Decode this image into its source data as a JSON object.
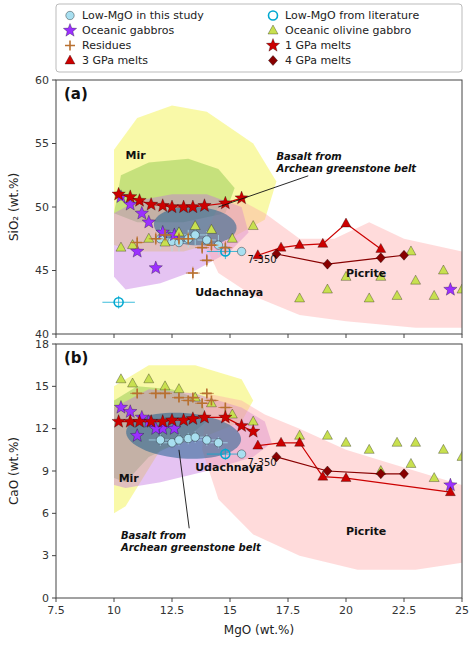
{
  "chart_data": [
    {
      "type": "scatter",
      "title": "(a)",
      "ylabel": "SiO₂ (wt.%)",
      "xlim": [
        7.5,
        25
      ],
      "ylim": [
        40,
        60
      ],
      "xticks": [
        7.5,
        10,
        12.5,
        15,
        17.5,
        20,
        22.5,
        25
      ],
      "yticks": [
        40,
        45,
        50,
        55,
        60
      ],
      "grid": false,
      "tick_labels": "y",
      "legend": "top",
      "regions": [
        {
          "type": "polygon",
          "color": "#f0f030",
          "x": [
            10.0,
            10.0,
            11.0,
            12.5,
            14.0,
            16.0,
            17.0,
            16.5,
            15.0,
            13.0,
            11.0,
            10.0
          ],
          "values": [
            47.0,
            54.5,
            57.0,
            58.0,
            57.5,
            55.0,
            52.0,
            49.0,
            47.5,
            46.5,
            46.5,
            47.0
          ]
        },
        {
          "type": "polygon",
          "color": "#80c040",
          "x": [
            10.0,
            10.3,
            11.5,
            13.2,
            14.5,
            15.2,
            14.8,
            13.0,
            11.0,
            10.0
          ],
          "values": [
            49.5,
            52.5,
            53.5,
            53.8,
            53.0,
            51.5,
            49.5,
            48.8,
            48.8,
            49.5
          ]
        },
        {
          "type": "polygon",
          "color": "#c070e0",
          "x": [
            10.0,
            10.0,
            11.0,
            12.5,
            14.0,
            15.5,
            15.8,
            15.0,
            13.5,
            12.0,
            10.5,
            10.0
          ],
          "values": [
            44.5,
            49.5,
            50.5,
            51.0,
            51.0,
            50.0,
            48.0,
            46.5,
            45.0,
            44.0,
            43.5,
            44.5
          ]
        },
        {
          "type": "polygon",
          "color": "#ffaaaa",
          "x": [
            14.5,
            15.5,
            16.5,
            18.0,
            19.5,
            21.0,
            22.5,
            25.0,
            25.0,
            23.0,
            20.0,
            18.0,
            16.0,
            14.5,
            13.8,
            14.5
          ],
          "values": [
            50.0,
            50.5,
            49.5,
            47.5,
            47.5,
            48.8,
            47.5,
            46.5,
            40.5,
            40.5,
            41.0,
            41.5,
            43.0,
            44.8,
            47.5,
            50.0
          ]
        },
        {
          "type": "ellipse",
          "color": "#206090",
          "cx": 13.5,
          "cy": 48.5,
          "rx": 1.8,
          "ry": 1.5,
          "angle": -15
        }
      ],
      "series": [
        {
          "name": "Low-MgO in this study",
          "color": "#a8dff0",
          "marker": "circle",
          "x": [
            12.0,
            12.5,
            12.8,
            13.2,
            13.5,
            14.0,
            14.5
          ],
          "values": [
            47.5,
            47.3,
            47.2,
            47.5,
            47.8,
            47.4,
            47.0
          ],
          "xerr": [
            0.5,
            0.4,
            0.4,
            0.4,
            0.5,
            0.4,
            0.4
          ],
          "yerr": [
            0.8,
            0.8,
            0.7,
            0.7,
            0.8,
            0.7,
            0.8
          ]
        },
        {
          "name": "Low-MgO from literature",
          "color": "#00a8d0",
          "marker": "circle-open",
          "x": [
            10.2,
            14.8
          ],
          "values": [
            42.5,
            46.5
          ],
          "xerr": [
            0.7,
            0.8
          ],
          "yerr": [
            0.5,
            0.6
          ]
        },
        {
          "name": "Oceanic gabbros",
          "color": "#9b30ff",
          "marker": "star",
          "x": [
            10.3,
            10.7,
            11.2,
            11.5,
            12.1,
            12.6,
            11.0,
            11.8,
            24.5
          ],
          "values": [
            50.8,
            50.2,
            49.5,
            48.8,
            48.0,
            47.8,
            46.5,
            45.2,
            43.5
          ]
        },
        {
          "name": "Oceanic olivine gabbro",
          "color": "#c8e050",
          "marker": "triangle",
          "x": [
            10.3,
            10.8,
            11.5,
            12.2,
            12.8,
            13.5,
            14.2,
            15.1,
            16.0,
            18.0,
            19.2,
            20.0,
            21.0,
            22.2,
            23.0,
            24.2,
            25.0,
            21.5,
            22.8,
            23.8
          ],
          "values": [
            46.8,
            47.0,
            47.5,
            47.2,
            48.0,
            48.5,
            48.2,
            47.5,
            48.5,
            42.8,
            43.5,
            44.5,
            42.8,
            43.0,
            44.2,
            45.0,
            43.5,
            44.5,
            46.5,
            43.0
          ]
        },
        {
          "name": "Residues",
          "color": "#b87030",
          "marker": "plus",
          "x": [
            11.0,
            11.8,
            12.2,
            12.8,
            13.2,
            13.8,
            14.2,
            14.8,
            13.4,
            14.0
          ],
          "values": [
            47.2,
            47.5,
            47.8,
            47.5,
            47.5,
            46.8,
            47.0,
            46.8,
            44.8,
            45.8
          ],
          "xerr": [
            0.3,
            0.3,
            0.3,
            0.3,
            0.3,
            0.3,
            0.3,
            0.3,
            0.3,
            0.3
          ],
          "yerr": [
            0.5,
            0.5,
            0.5,
            0.5,
            0.5,
            0.5,
            0.5,
            0.5,
            0.5,
            0.5
          ]
        },
        {
          "name": "1 GPa melts",
          "color": "#cc0000",
          "marker": "star",
          "line_style": "solid",
          "x": [
            10.2,
            10.7,
            11.1,
            11.6,
            12.1,
            12.5,
            13.0,
            13.4,
            13.9,
            14.8,
            15.5
          ],
          "values": [
            51.0,
            50.8,
            50.5,
            50.2,
            50.1,
            50.0,
            50.0,
            50.0,
            50.1,
            50.3,
            50.7
          ]
        },
        {
          "name": "3 GPa melts",
          "color": "#cc0000",
          "marker": "triangle",
          "line_style": "solid",
          "x": [
            16.2,
            17.2,
            18.0,
            19.0,
            20.0,
            21.5
          ],
          "values": [
            46.2,
            46.8,
            47.0,
            47.1,
            48.7,
            46.7
          ]
        },
        {
          "name": "4 GPa melts",
          "color": "#880000",
          "marker": "diamond",
          "line_style": "solid",
          "x": [
            17.0,
            19.2,
            21.5,
            22.5
          ],
          "values": [
            46.3,
            45.5,
            46.0,
            46.2
          ]
        }
      ],
      "annotations": [
        {
          "text": "7-350",
          "x": 15.5,
          "y": 46.5,
          "marker": "circle",
          "color": "#a8dff0"
        },
        {
          "text": "Mir",
          "x": 10.5,
          "y": 53.8
        },
        {
          "text": "Udachnaya",
          "x": 13.5,
          "y": 43.0
        },
        {
          "text": "Basalt from\nArchean greenstone belt",
          "x": 17.0,
          "y": 53.5,
          "target_x": 14.5,
          "target_y": 50.0
        },
        {
          "text": "Picrite",
          "x": 20.0,
          "y": 44.5
        }
      ]
    },
    {
      "type": "scatter",
      "title": "(b)",
      "xlabel": "MgO (wt.%)",
      "ylabel": "CaO (wt.%)",
      "xlim": [
        7.5,
        25
      ],
      "ylim": [
        0,
        18
      ],
      "xticks": [
        7.5,
        10,
        12.5,
        15,
        17.5,
        20,
        22.5,
        25
      ],
      "yticks": [
        0,
        3,
        6,
        9,
        12,
        15,
        18
      ],
      "grid": false,
      "regions": [
        {
          "type": "polygon",
          "color": "#f0f030",
          "x": [
            10.0,
            10.0,
            11.5,
            13.5,
            15.5,
            16.0,
            15.5,
            14.0,
            12.0,
            10.5,
            10.0
          ],
          "values": [
            6.0,
            15.0,
            16.5,
            16.5,
            15.5,
            14.0,
            12.5,
            11.5,
            10.5,
            6.5,
            6.0
          ]
        },
        {
          "type": "polygon",
          "color": "#80c040",
          "x": [
            10.0,
            10.0,
            11.0,
            12.5,
            13.8,
            14.0,
            13.0,
            11.5,
            10.5,
            10.0
          ],
          "values": [
            8.5,
            14.0,
            15.0,
            14.8,
            14.0,
            12.5,
            11.2,
            10.0,
            8.2,
            8.5
          ]
        },
        {
          "type": "polygon",
          "color": "#c070e0",
          "x": [
            10.0,
            10.0,
            11.5,
            13.5,
            15.5,
            16.5,
            16.8,
            16.0,
            14.0,
            12.0,
            10.5,
            10.0
          ],
          "values": [
            8.0,
            13.5,
            14.8,
            14.5,
            13.5,
            12.5,
            11.0,
            10.0,
            9.0,
            8.2,
            7.8,
            8.0
          ]
        },
        {
          "type": "polygon",
          "color": "#ffaaaa",
          "x": [
            14.0,
            15.5,
            16.5,
            18.0,
            20.0,
            22.0,
            24.0,
            25.0,
            25.0,
            23.0,
            20.5,
            18.0,
            16.0,
            14.5,
            13.8,
            14.0
          ],
          "values": [
            14.5,
            14.0,
            13.0,
            12.0,
            10.5,
            9.5,
            8.5,
            8.0,
            2.5,
            2.0,
            2.0,
            3.0,
            4.5,
            7.0,
            10.5,
            14.5
          ]
        },
        {
          "type": "ellipse",
          "color": "#206090",
          "cx": 13.0,
          "cy": 11.5,
          "rx": 2.5,
          "ry": 1.6,
          "angle": -10
        }
      ],
      "series": [
        {
          "color": "#a8dff0",
          "marker": "circle",
          "x": [
            12.0,
            12.5,
            12.8,
            13.2,
            13.5,
            14.0,
            14.5
          ],
          "values": [
            11.2,
            11.0,
            11.2,
            11.3,
            11.4,
            11.2,
            11.0
          ],
          "xerr": [
            0.5,
            0.4,
            0.4,
            0.4,
            0.5,
            0.4,
            0.4
          ],
          "yerr": [
            0.4,
            0.3,
            0.4,
            0.4,
            0.4,
            0.4,
            0.4
          ]
        },
        {
          "color": "#00a8d0",
          "marker": "circle-open",
          "x": [
            14.8
          ],
          "values": [
            10.2
          ],
          "xerr": [
            0.8
          ],
          "yerr": [
            0.4
          ]
        },
        {
          "color": "#9b30ff",
          "marker": "star",
          "x": [
            10.3,
            10.7,
            11.2,
            11.5,
            12.1,
            12.6,
            11.0,
            11.8,
            24.5
          ],
          "values": [
            13.5,
            13.2,
            12.8,
            12.5,
            12.0,
            12.0,
            11.5,
            12.0,
            8.0
          ]
        },
        {
          "color": "#c8e050",
          "marker": "triangle",
          "x": [
            10.3,
            10.8,
            11.5,
            12.2,
            12.8,
            13.5,
            14.2,
            15.1,
            16.0,
            18.0,
            19.2,
            20.0,
            21.0,
            22.2,
            23.0,
            24.2,
            25.0,
            21.5,
            22.8,
            23.8
          ],
          "values": [
            15.5,
            15.2,
            15.5,
            15.0,
            14.8,
            14.2,
            13.8,
            13.0,
            12.5,
            11.5,
            11.5,
            11.0,
            10.5,
            11.0,
            11.0,
            10.5,
            10.0,
            9.0,
            9.5,
            8.5
          ]
        },
        {
          "color": "#b87030",
          "marker": "plus",
          "x": [
            11.0,
            11.8,
            12.2,
            12.8,
            13.2,
            13.8,
            14.2,
            14.8,
            13.4,
            14.0
          ],
          "values": [
            14.5,
            14.5,
            14.5,
            14.2,
            14.0,
            13.8,
            14.0,
            13.5,
            14.2,
            14.5
          ],
          "xerr": [
            0.3,
            0.3,
            0.3,
            0.3,
            0.3,
            0.3,
            0.3,
            0.3,
            0.3,
            0.3
          ],
          "yerr": [
            0.3,
            0.3,
            0.3,
            0.3,
            0.3,
            0.3,
            0.3,
            0.3,
            0.3,
            0.3
          ]
        },
        {
          "color": "#cc0000",
          "marker": "star",
          "line_style": "solid",
          "x": [
            10.2,
            10.7,
            11.1,
            11.6,
            12.1,
            12.5,
            13.0,
            13.4,
            13.9,
            14.8,
            15.5,
            16.0
          ],
          "values": [
            12.5,
            12.5,
            12.5,
            12.5,
            12.5,
            12.6,
            12.6,
            12.7,
            12.8,
            12.8,
            12.2,
            11.8
          ]
        },
        {
          "color": "#cc0000",
          "marker": "triangle",
          "line_style": "solid",
          "x": [
            16.2,
            17.2,
            18.0,
            19.0,
            20.0,
            24.5
          ],
          "values": [
            10.8,
            11.0,
            11.0,
            8.6,
            8.5,
            7.5
          ]
        },
        {
          "color": "#880000",
          "marker": "diamond",
          "line_style": "solid",
          "x": [
            17.0,
            19.2,
            21.5,
            22.5
          ],
          "values": [
            10.0,
            9.0,
            8.8,
            8.8
          ]
        }
      ],
      "annotations": [
        {
          "text": "7-350",
          "x": 15.5,
          "y": 10.2,
          "marker": "circle",
          "color": "#a8dff0"
        },
        {
          "text": "Mir",
          "x": 10.2,
          "y": 8.2
        },
        {
          "text": "Udachnaya",
          "x": 13.5,
          "y": 9.0
        },
        {
          "text": "Basalt from\nArchean greenstone belt",
          "x": 10.3,
          "y": 4.0,
          "target_x": 12.8,
          "target_y": 10.5
        },
        {
          "text": "Picrite",
          "x": 20.0,
          "y": 4.5
        }
      ]
    }
  ]
}
